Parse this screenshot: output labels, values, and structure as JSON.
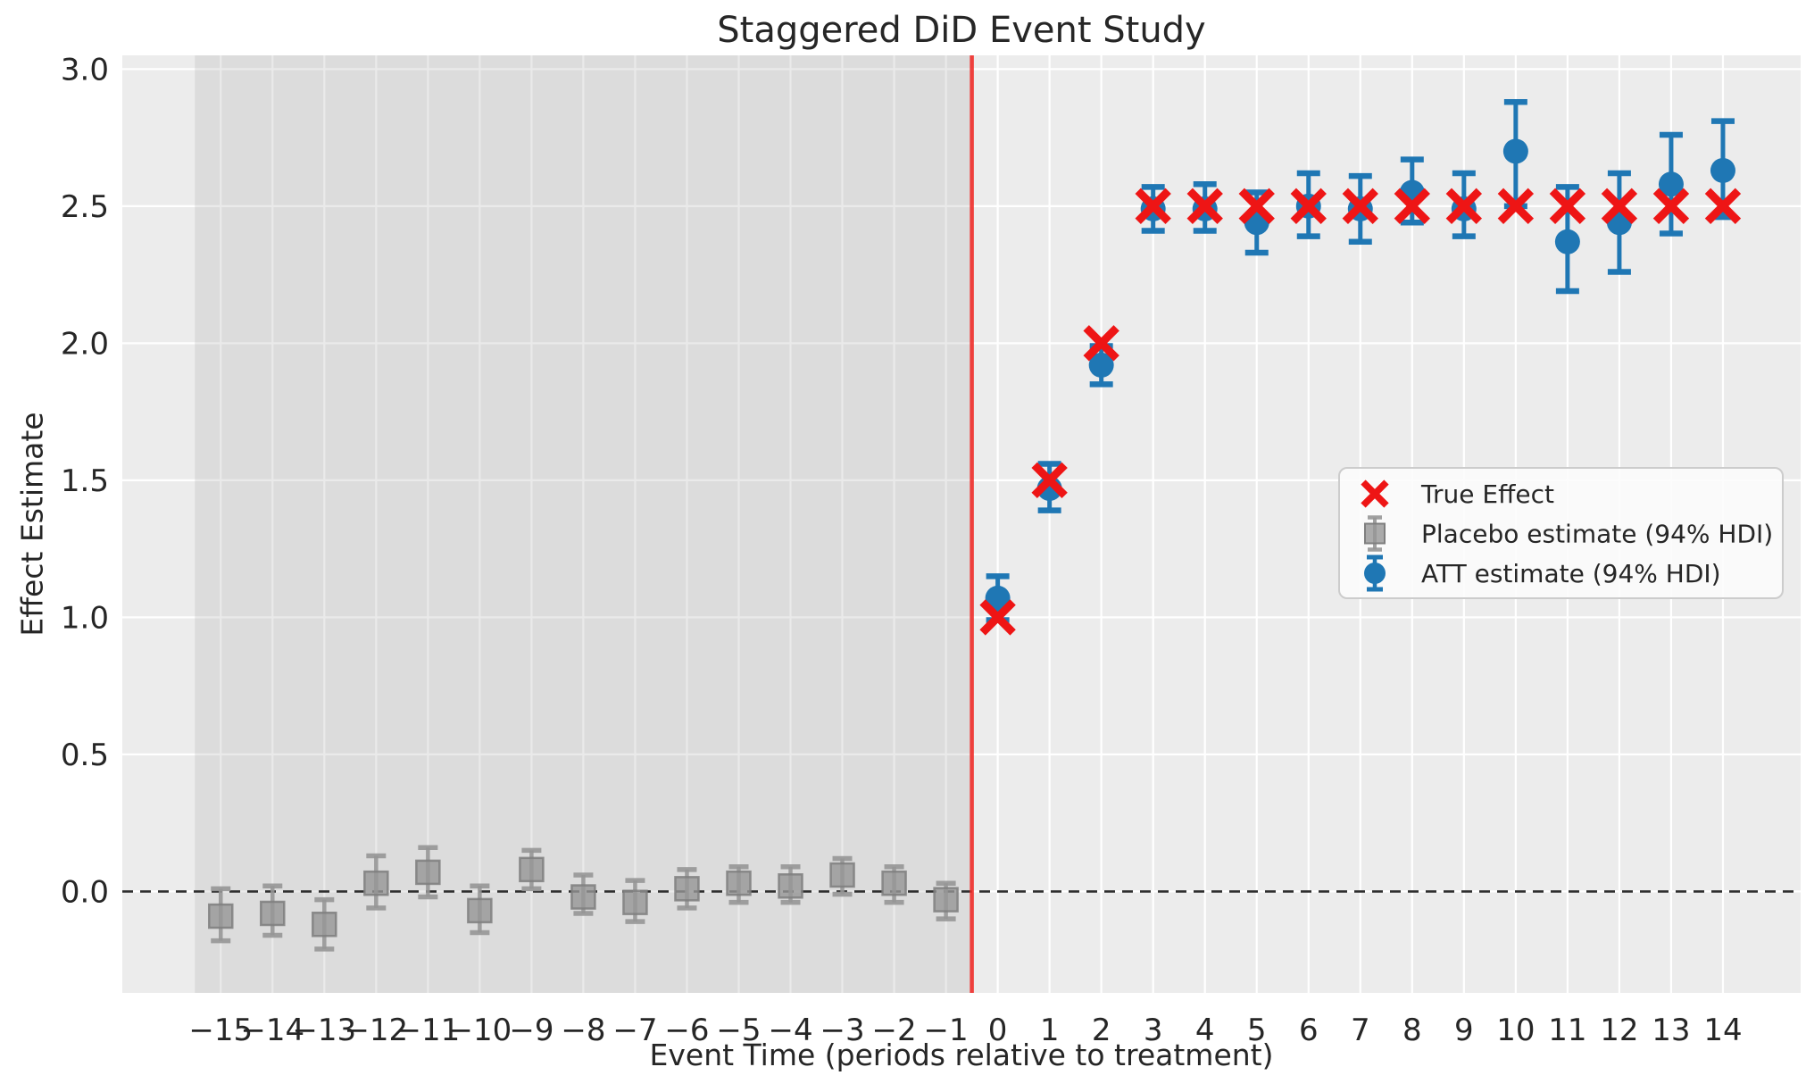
{
  "figure": {
    "title": "Staggered DiD Event Study"
  },
  "colors": {
    "axes_background": "#ececec",
    "grid_line": "#ffffff",
    "pre_period_shade": "#aaaaaa",
    "zero_line": "#2e2e2e",
    "treatment_line": "#ef2d2a",
    "true_effect_red": "#ee1515",
    "placebo_gray": "#969696",
    "att_blue": "#1f77b4",
    "legend_face": "#fcfcfc",
    "legend_edge": "#cccccc",
    "text": "#262626"
  },
  "chart_data": {
    "type": "scatter",
    "title": "Staggered DiD Event Study",
    "xlabel": "Event Time (periods relative to treatment)",
    "ylabel": "Effect Estimate",
    "xlim": [
      -16.9,
      15.5
    ],
    "ylim": [
      -0.37,
      3.05
    ],
    "x_ticks": [
      -15,
      -14,
      -13,
      -12,
      -11,
      -10,
      -9,
      -8,
      -7,
      -6,
      -5,
      -4,
      -3,
      -2,
      -1,
      0,
      1,
      2,
      3,
      4,
      5,
      6,
      7,
      8,
      9,
      10,
      11,
      12,
      13,
      14
    ],
    "y_ticks": [
      0.0,
      0.5,
      1.0,
      1.5,
      2.0,
      2.5,
      3.0
    ],
    "grid": true,
    "zero_line_y": 0,
    "treatment_line_x": -0.5,
    "pre_period_span": [
      -15.5,
      -0.5
    ],
    "legend_position": "center right",
    "series": [
      {
        "name": "True Effect",
        "kind": "scatter",
        "marker": "x",
        "x": [
          0,
          1,
          2,
          3,
          4,
          5,
          6,
          7,
          8,
          9,
          10,
          11,
          12,
          13,
          14
        ],
        "y": [
          1.0,
          1.5,
          2.0,
          2.5,
          2.5,
          2.5,
          2.5,
          2.5,
          2.5,
          2.5,
          2.5,
          2.5,
          2.5,
          2.5,
          2.5
        ]
      },
      {
        "name": "Placebo estimate (94% HDI)",
        "kind": "errorbar",
        "marker": "square",
        "x": [
          -15,
          -14,
          -13,
          -12,
          -11,
          -10,
          -9,
          -8,
          -7,
          -6,
          -5,
          -4,
          -3,
          -2,
          -1
        ],
        "y": [
          -0.09,
          -0.08,
          -0.12,
          0.03,
          0.07,
          -0.07,
          0.08,
          -0.02,
          -0.04,
          0.01,
          0.03,
          0.02,
          0.06,
          0.03,
          -0.03
        ],
        "y_lo": [
          -0.18,
          -0.16,
          -0.21,
          -0.06,
          -0.02,
          -0.15,
          0.01,
          -0.08,
          -0.11,
          -0.06,
          -0.04,
          -0.04,
          -0.01,
          -0.04,
          -0.1
        ],
        "y_hi": [
          0.01,
          0.02,
          -0.03,
          0.13,
          0.16,
          0.02,
          0.15,
          0.06,
          0.04,
          0.08,
          0.09,
          0.09,
          0.12,
          0.09,
          0.03
        ]
      },
      {
        "name": "ATT estimate (94% HDI)",
        "kind": "errorbar",
        "marker": "circle",
        "x": [
          0,
          1,
          2,
          3,
          4,
          5,
          6,
          7,
          8,
          9,
          10,
          11,
          12,
          13,
          14
        ],
        "y": [
          1.07,
          1.47,
          1.92,
          2.49,
          2.49,
          2.44,
          2.5,
          2.49,
          2.55,
          2.49,
          2.7,
          2.37,
          2.44,
          2.58,
          2.63
        ],
        "y_lo": [
          0.99,
          1.39,
          1.85,
          2.41,
          2.41,
          2.33,
          2.39,
          2.37,
          2.44,
          2.39,
          2.5,
          2.19,
          2.26,
          2.4,
          2.46
        ],
        "y_hi": [
          1.15,
          1.56,
          1.99,
          2.57,
          2.58,
          2.55,
          2.62,
          2.61,
          2.67,
          2.62,
          2.88,
          2.57,
          2.62,
          2.76,
          2.81
        ]
      }
    ]
  }
}
